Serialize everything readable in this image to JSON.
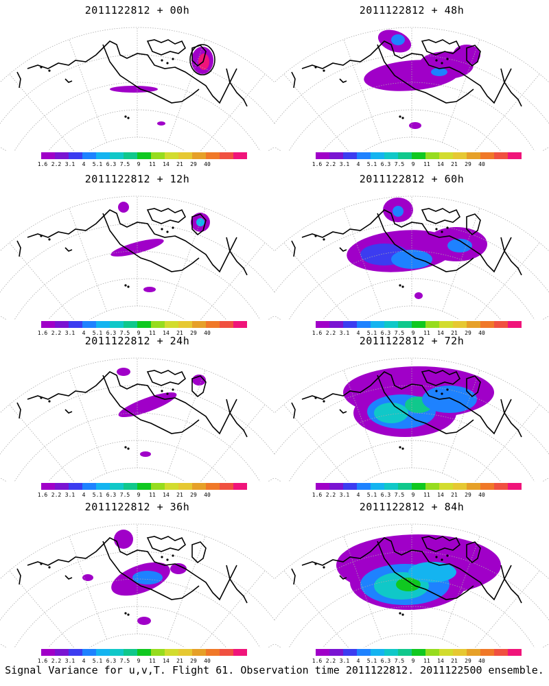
{
  "panels": [
    {
      "title": "2011122812 + 00h"
    },
    {
      "title": "2011122812 + 48h"
    },
    {
      "title": "2011122812 + 12h"
    },
    {
      "title": "2011122812 + 60h"
    },
    {
      "title": "2011122812 + 24h"
    },
    {
      "title": "2011122812 + 72h"
    },
    {
      "title": "2011122812 + 36h"
    },
    {
      "title": "2011122812 + 84h"
    }
  ],
  "colorbar": {
    "colors": [
      "#a000c8",
      "#7a14d2",
      "#3c3cf0",
      "#1e82ff",
      "#14b4f0",
      "#10c8c8",
      "#10c88c",
      "#10c820",
      "#96dc1e",
      "#d2dc2e",
      "#e6c832",
      "#e6a028",
      "#f07828",
      "#f05040",
      "#f0147a"
    ],
    "labels": [
      "1.6",
      "2.2",
      "3.1",
      "4",
      "5.1",
      "6.3",
      "7.5",
      "9",
      "11",
      "14",
      "21",
      "29",
      "40"
    ]
  },
  "caption": "Signal Variance for u,v,T. Flight 61. Observation time 2011122812. 2011122500 ensemble."
}
